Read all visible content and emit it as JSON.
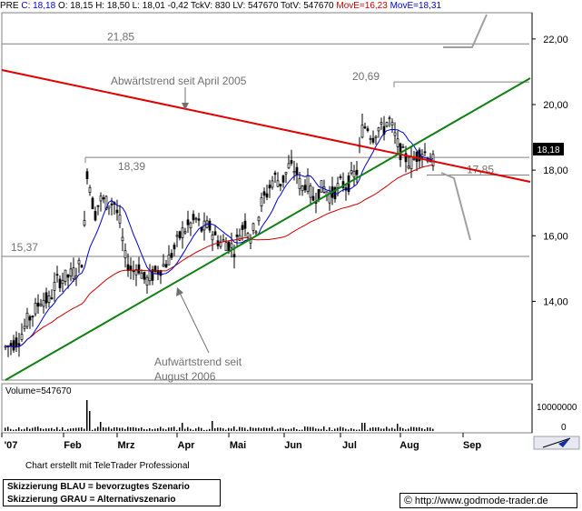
{
  "header": {
    "ticker": "PRE",
    "close": "C: 18,18",
    "open": "O: 18,15",
    "high": "H: 18,50",
    "low": "L: 18,01",
    "change": "-0,42",
    "tckv": "TckV: 830",
    "lv": "LV: 547670",
    "totv": "TotV: 547670",
    "move1": "MovE=16,23",
    "move2": "MovE=18,31"
  },
  "chart_data": {
    "type": "candlestick",
    "x_months": [
      "'07",
      "Feb",
      "Mrz",
      "Apr",
      "Mai",
      "Jun",
      "Jul",
      "Aug",
      "Sep"
    ],
    "y_ticks": [
      "22,00",
      "20,00",
      "18,00",
      "16,00",
      "14,00"
    ],
    "ylim": [
      11.6,
      22.8
    ],
    "last_price_label": "18,18",
    "levels": [
      {
        "label": "21,85",
        "value": 21.85
      },
      {
        "label": "20,69",
        "value": 20.69
      },
      {
        "label": "18,39",
        "value": 18.39
      },
      {
        "label": "17,85",
        "value": 17.85
      },
      {
        "label": "15,37",
        "value": 15.37
      }
    ],
    "annotations": {
      "downtrend": "Abwärtstrend seit April 2005",
      "uptrend_line1": "Aufwärtstrend seit",
      "uptrend_line2": "August 2006"
    },
    "series": [
      {
        "name": "MovE=16,23",
        "color": "#cc0000"
      },
      {
        "name": "MovE=18,31",
        "color": "#0000cc"
      }
    ],
    "volume": {
      "label": "Volume=547670",
      "ticks": [
        "10000000",
        "0"
      ]
    }
  },
  "footer": {
    "credit": "Chart erstellt mit TeleTrader Professional",
    "legend_line1": "Skizzierung BLAU = bevorzugtes Szenario",
    "legend_line2": "Skizzierung GRAU = Alternativszenario",
    "copyright": "©",
    "url": "http://www.godmode-trader.de"
  }
}
